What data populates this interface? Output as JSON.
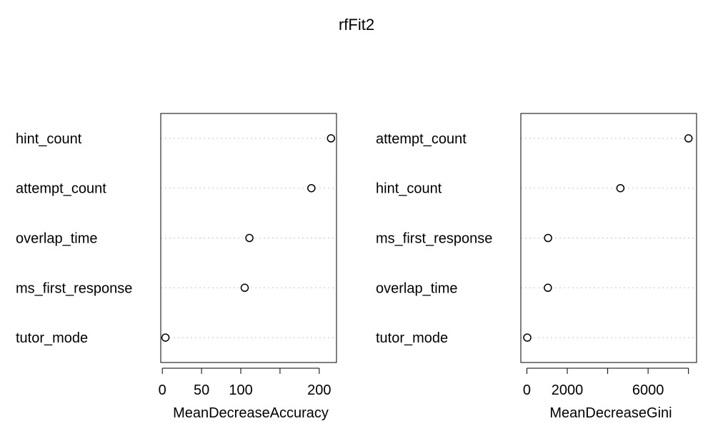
{
  "title": "rfFit2",
  "chart_data": [
    {
      "type": "scatter",
      "subtype": "dotchart",
      "xlabel": "MeanDecreaseAccuracy",
      "xlim": [
        -2,
        222
      ],
      "xticks": [
        0,
        50,
        100,
        150,
        200
      ],
      "xtick_labels": [
        "0",
        "50",
        "100",
        "",
        "200"
      ],
      "grid": "dotted horizontal",
      "categories": [
        "hint_count",
        "attempt_count",
        "overlap_time",
        "ms_first_response",
        "tutor_mode"
      ],
      "values": [
        215,
        190,
        111,
        105,
        4
      ]
    },
    {
      "type": "scatter",
      "subtype": "dotchart",
      "xlabel": "MeanDecreaseGini",
      "xlim": [
        -300,
        8400
      ],
      "xticks": [
        0,
        2000,
        4000,
        6000,
        8000
      ],
      "xtick_labels": [
        "0",
        "2000",
        "",
        "6000",
        ""
      ],
      "grid": "dotted horizontal",
      "categories": [
        "attempt_count",
        "hint_count",
        "ms_first_response",
        "overlap_time",
        "tutor_mode"
      ],
      "values": [
        8000,
        4630,
        1050,
        1040,
        20
      ]
    }
  ]
}
